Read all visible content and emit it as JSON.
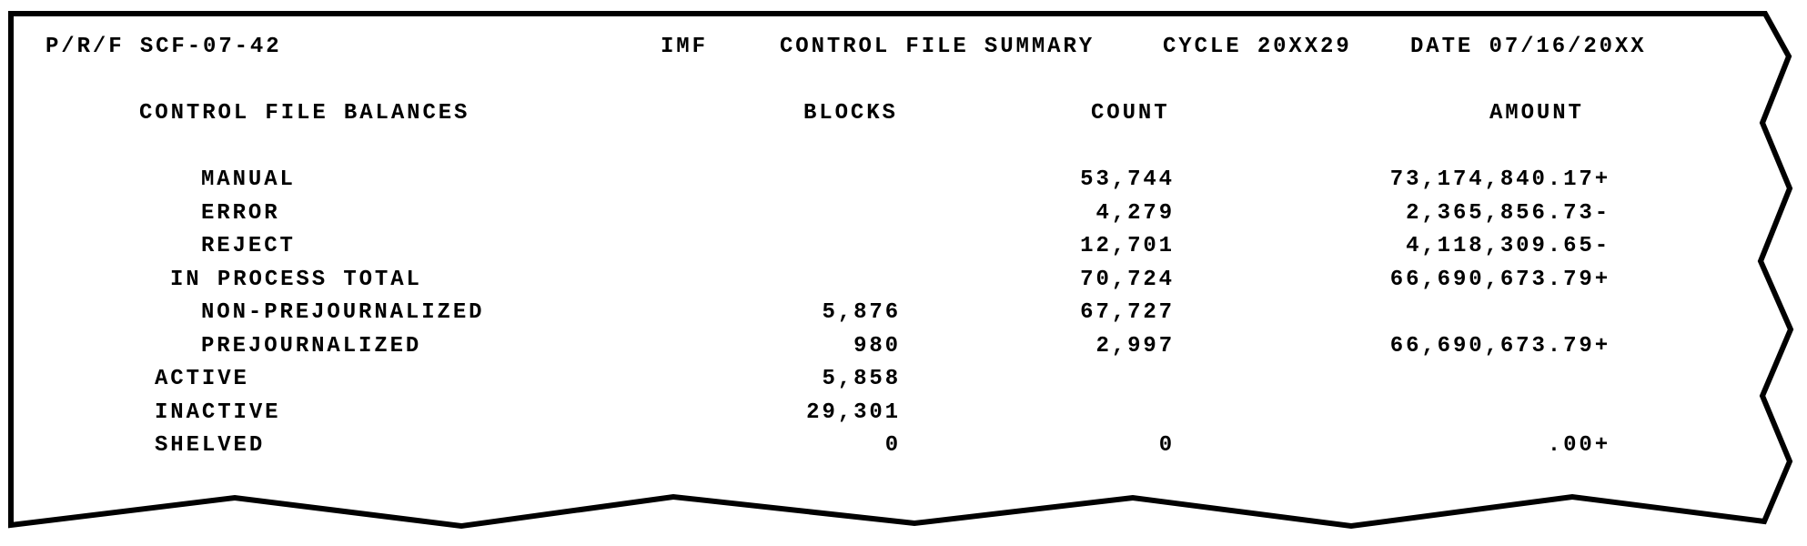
{
  "report": {
    "program": "P/R/F SCF-07-42",
    "file": "IMF",
    "title": "CONTROL FILE SUMMARY",
    "cycle": "CYCLE 20XX29",
    "date": "DATE 07/16/20XX"
  },
  "table": {
    "section_header": "CONTROL FILE BALANCES",
    "columns": {
      "blocks": "BLOCKS",
      "count": "COUNT",
      "amount": "AMOUNT"
    },
    "rows": [
      {
        "label": "MANUAL",
        "level": 2,
        "blocks": "",
        "count": "53,744",
        "amount": "73,174,840.17+"
      },
      {
        "label": "ERROR",
        "level": 2,
        "blocks": "",
        "count": "4,279",
        "amount": "2,365,856.73-"
      },
      {
        "label": "REJECT",
        "level": 2,
        "blocks": "",
        "count": "12,701",
        "amount": "4,118,309.65-"
      },
      {
        "label": "IN PROCESS TOTAL",
        "level": 1,
        "blocks": "",
        "count": "70,724",
        "amount": "66,690,673.79+"
      },
      {
        "label": "NON-PREJOURNALIZED",
        "level": 2,
        "blocks": "5,876",
        "count": "67,727",
        "amount": ""
      },
      {
        "label": "PREJOURNALIZED",
        "level": 2,
        "blocks": "980",
        "count": "2,997",
        "amount": "66,690,673.79+"
      },
      {
        "label": "ACTIVE",
        "level": 0,
        "blocks": "5,858",
        "count": "",
        "amount": ""
      },
      {
        "label": "INACTIVE",
        "level": 0,
        "blocks": "29,301",
        "count": "",
        "amount": ""
      },
      {
        "label": "SHELVED",
        "level": 0,
        "blocks": "0",
        "count": "0",
        "amount": ".00+"
      }
    ]
  },
  "colors": {
    "ink": "#000000",
    "paper": "#ffffff"
  }
}
